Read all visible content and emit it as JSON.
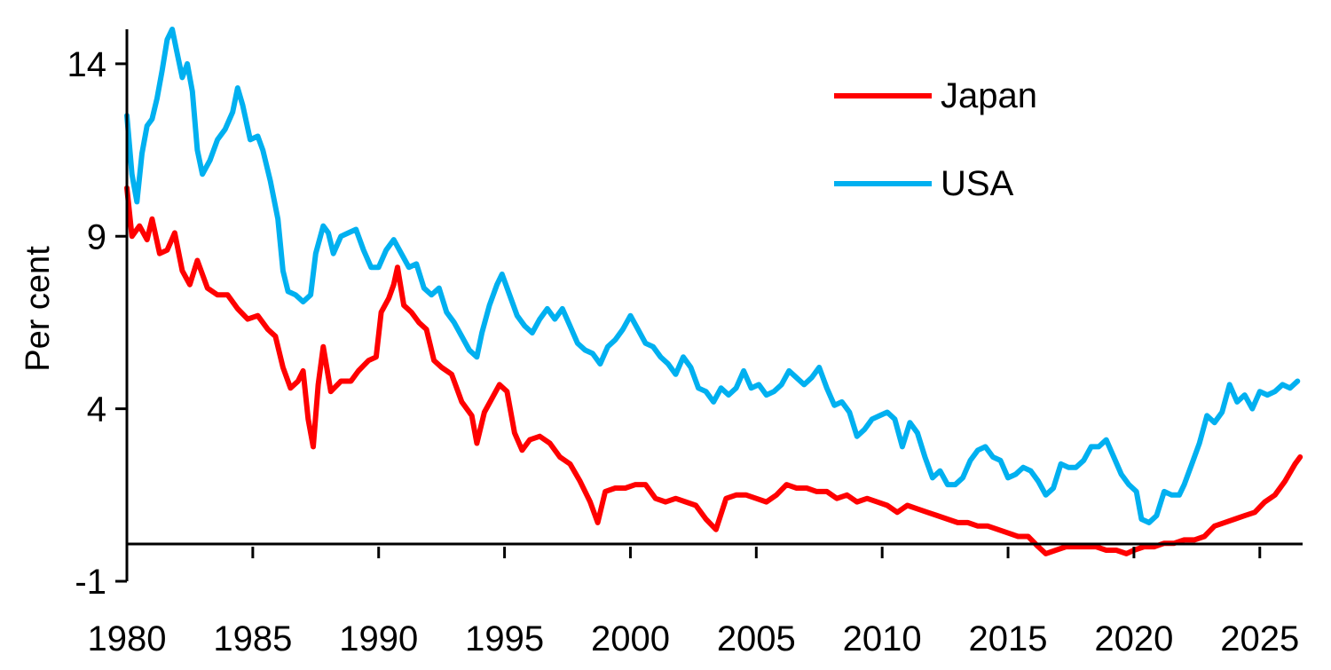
{
  "chart_data": {
    "type": "line",
    "title": "",
    "xlabel": "",
    "ylabel": "Per cent",
    "xlim": [
      1980,
      2026.7
    ],
    "ylim": [
      -1,
      15
    ],
    "x_ticks": [
      "1980",
      "1985",
      "1990",
      "1995",
      "2000",
      "2005",
      "2010",
      "2015",
      "2020",
      "2025"
    ],
    "y_ticks": [
      "-1",
      "4",
      "9",
      "14"
    ],
    "grid": false,
    "legend_position": "top-right",
    "series": [
      {
        "name": "Japan",
        "color": "#ff0000",
        "points": [
          [
            1980.0,
            10.4
          ],
          [
            1980.2,
            9.0
          ],
          [
            1980.5,
            9.3
          ],
          [
            1980.8,
            8.9
          ],
          [
            1981.0,
            9.5
          ],
          [
            1981.3,
            8.5
          ],
          [
            1981.6,
            8.6
          ],
          [
            1981.9,
            9.1
          ],
          [
            1982.2,
            8.0
          ],
          [
            1982.5,
            7.6
          ],
          [
            1982.8,
            8.3
          ],
          [
            1983.2,
            7.5
          ],
          [
            1983.6,
            7.3
          ],
          [
            1984.0,
            7.3
          ],
          [
            1984.4,
            6.9
          ],
          [
            1984.8,
            6.6
          ],
          [
            1985.2,
            6.7
          ],
          [
            1985.6,
            6.3
          ],
          [
            1985.9,
            6.1
          ],
          [
            1986.2,
            5.2
          ],
          [
            1986.5,
            4.6
          ],
          [
            1986.8,
            4.8
          ],
          [
            1987.0,
            5.1
          ],
          [
            1987.2,
            3.7
          ],
          [
            1987.4,
            2.9
          ],
          [
            1987.6,
            4.7
          ],
          [
            1987.8,
            5.8
          ],
          [
            1988.1,
            4.5
          ],
          [
            1988.5,
            4.8
          ],
          [
            1988.9,
            4.8
          ],
          [
            1989.2,
            5.1
          ],
          [
            1989.6,
            5.4
          ],
          [
            1989.9,
            5.5
          ],
          [
            1990.1,
            6.8
          ],
          [
            1990.4,
            7.2
          ],
          [
            1990.6,
            7.6
          ],
          [
            1990.75,
            8.1
          ],
          [
            1991.0,
            7.0
          ],
          [
            1991.3,
            6.8
          ],
          [
            1991.6,
            6.5
          ],
          [
            1991.9,
            6.3
          ],
          [
            1992.2,
            5.4
          ],
          [
            1992.5,
            5.2
          ],
          [
            1992.9,
            5.0
          ],
          [
            1993.3,
            4.2
          ],
          [
            1993.7,
            3.8
          ],
          [
            1993.9,
            3.0
          ],
          [
            1994.2,
            3.9
          ],
          [
            1994.5,
            4.3
          ],
          [
            1994.8,
            4.7
          ],
          [
            1995.1,
            4.5
          ],
          [
            1995.4,
            3.3
          ],
          [
            1995.7,
            2.8
          ],
          [
            1996.0,
            3.1
          ],
          [
            1996.4,
            3.2
          ],
          [
            1996.8,
            3.0
          ],
          [
            1997.2,
            2.6
          ],
          [
            1997.6,
            2.4
          ],
          [
            1998.0,
            1.9
          ],
          [
            1998.4,
            1.3
          ],
          [
            1998.7,
            0.7
          ],
          [
            1999.0,
            1.6
          ],
          [
            1999.4,
            1.7
          ],
          [
            1999.8,
            1.7
          ],
          [
            2000.2,
            1.8
          ],
          [
            2000.6,
            1.8
          ],
          [
            2001.0,
            1.4
          ],
          [
            2001.4,
            1.3
          ],
          [
            2001.8,
            1.4
          ],
          [
            2002.2,
            1.3
          ],
          [
            2002.6,
            1.2
          ],
          [
            2003.0,
            0.8
          ],
          [
            2003.4,
            0.5
          ],
          [
            2003.8,
            1.4
          ],
          [
            2004.2,
            1.5
          ],
          [
            2004.6,
            1.5
          ],
          [
            2005.0,
            1.4
          ],
          [
            2005.4,
            1.3
          ],
          [
            2005.8,
            1.5
          ],
          [
            2006.2,
            1.8
          ],
          [
            2006.6,
            1.7
          ],
          [
            2007.0,
            1.7
          ],
          [
            2007.4,
            1.6
          ],
          [
            2007.8,
            1.6
          ],
          [
            2008.2,
            1.4
          ],
          [
            2008.6,
            1.5
          ],
          [
            2009.0,
            1.3
          ],
          [
            2009.4,
            1.4
          ],
          [
            2009.8,
            1.3
          ],
          [
            2010.2,
            1.2
          ],
          [
            2010.6,
            1.0
          ],
          [
            2011.0,
            1.2
          ],
          [
            2011.4,
            1.1
          ],
          [
            2011.8,
            1.0
          ],
          [
            2012.2,
            0.9
          ],
          [
            2012.6,
            0.8
          ],
          [
            2013.0,
            0.7
          ],
          [
            2013.4,
            0.7
          ],
          [
            2013.8,
            0.6
          ],
          [
            2014.2,
            0.6
          ],
          [
            2014.6,
            0.5
          ],
          [
            2015.0,
            0.4
          ],
          [
            2015.4,
            0.3
          ],
          [
            2015.8,
            0.3
          ],
          [
            2016.2,
            0.0
          ],
          [
            2016.5,
            -0.2
          ],
          [
            2016.9,
            -0.1
          ],
          [
            2017.3,
            0.0
          ],
          [
            2017.7,
            0.0
          ],
          [
            2018.1,
            0.0
          ],
          [
            2018.5,
            0.0
          ],
          [
            2018.9,
            -0.1
          ],
          [
            2019.3,
            -0.1
          ],
          [
            2019.7,
            -0.2
          ],
          [
            2020.0,
            -0.1
          ],
          [
            2020.4,
            0.0
          ],
          [
            2020.8,
            0.0
          ],
          [
            2021.2,
            0.1
          ],
          [
            2021.6,
            0.1
          ],
          [
            2022.0,
            0.2
          ],
          [
            2022.4,
            0.2
          ],
          [
            2022.8,
            0.3
          ],
          [
            2023.2,
            0.6
          ],
          [
            2023.6,
            0.7
          ],
          [
            2024.0,
            0.8
          ],
          [
            2024.4,
            0.9
          ],
          [
            2024.8,
            1.0
          ],
          [
            2025.2,
            1.3
          ],
          [
            2025.6,
            1.5
          ],
          [
            2026.0,
            1.9
          ],
          [
            2026.4,
            2.4
          ],
          [
            2026.6,
            2.6
          ]
        ]
      },
      {
        "name": "USA",
        "color": "#00b0f0",
        "points": [
          [
            1980.0,
            12.5
          ],
          [
            1980.2,
            10.8
          ],
          [
            1980.4,
            10.0
          ],
          [
            1980.6,
            11.4
          ],
          [
            1980.8,
            12.2
          ],
          [
            1981.0,
            12.4
          ],
          [
            1981.2,
            13.0
          ],
          [
            1981.4,
            13.8
          ],
          [
            1981.6,
            14.7
          ],
          [
            1981.8,
            15.0
          ],
          [
            1982.0,
            14.3
          ],
          [
            1982.2,
            13.6
          ],
          [
            1982.4,
            14.0
          ],
          [
            1982.6,
            13.2
          ],
          [
            1982.8,
            11.5
          ],
          [
            1983.0,
            10.8
          ],
          [
            1983.3,
            11.2
          ],
          [
            1983.6,
            11.8
          ],
          [
            1983.9,
            12.1
          ],
          [
            1984.2,
            12.6
          ],
          [
            1984.4,
            13.3
          ],
          [
            1984.6,
            12.8
          ],
          [
            1984.9,
            11.8
          ],
          [
            1985.2,
            11.9
          ],
          [
            1985.4,
            11.5
          ],
          [
            1985.7,
            10.6
          ],
          [
            1986.0,
            9.5
          ],
          [
            1986.2,
            8.0
          ],
          [
            1986.4,
            7.4
          ],
          [
            1986.7,
            7.3
          ],
          [
            1987.0,
            7.1
          ],
          [
            1987.3,
            7.3
          ],
          [
            1987.5,
            8.5
          ],
          [
            1987.8,
            9.3
          ],
          [
            1988.0,
            9.1
          ],
          [
            1988.2,
            8.5
          ],
          [
            1988.5,
            9.0
          ],
          [
            1988.8,
            9.1
          ],
          [
            1989.1,
            9.2
          ],
          [
            1989.4,
            8.6
          ],
          [
            1989.7,
            8.1
          ],
          [
            1990.0,
            8.1
          ],
          [
            1990.3,
            8.6
          ],
          [
            1990.6,
            8.9
          ],
          [
            1990.9,
            8.5
          ],
          [
            1991.2,
            8.1
          ],
          [
            1991.5,
            8.2
          ],
          [
            1991.8,
            7.5
          ],
          [
            1992.1,
            7.3
          ],
          [
            1992.4,
            7.5
          ],
          [
            1992.7,
            6.8
          ],
          [
            1993.0,
            6.5
          ],
          [
            1993.3,
            6.1
          ],
          [
            1993.6,
            5.7
          ],
          [
            1993.9,
            5.5
          ],
          [
            1994.1,
            6.2
          ],
          [
            1994.4,
            7.0
          ],
          [
            1994.7,
            7.6
          ],
          [
            1994.9,
            7.9
          ],
          [
            1995.2,
            7.3
          ],
          [
            1995.5,
            6.7
          ],
          [
            1995.8,
            6.4
          ],
          [
            1996.1,
            6.2
          ],
          [
            1996.4,
            6.6
          ],
          [
            1996.7,
            6.9
          ],
          [
            1997.0,
            6.6
          ],
          [
            1997.3,
            6.9
          ],
          [
            1997.6,
            6.4
          ],
          [
            1997.9,
            5.9
          ],
          [
            1998.2,
            5.7
          ],
          [
            1998.5,
            5.6
          ],
          [
            1998.8,
            5.3
          ],
          [
            1999.1,
            5.8
          ],
          [
            1999.4,
            6.0
          ],
          [
            1999.7,
            6.3
          ],
          [
            2000.0,
            6.7
          ],
          [
            2000.3,
            6.3
          ],
          [
            2000.6,
            5.9
          ],
          [
            2000.9,
            5.8
          ],
          [
            2001.2,
            5.5
          ],
          [
            2001.5,
            5.3
          ],
          [
            2001.8,
            5.0
          ],
          [
            2002.1,
            5.5
          ],
          [
            2002.4,
            5.2
          ],
          [
            2002.7,
            4.6
          ],
          [
            2003.0,
            4.5
          ],
          [
            2003.3,
            4.2
          ],
          [
            2003.6,
            4.6
          ],
          [
            2003.9,
            4.4
          ],
          [
            2004.2,
            4.6
          ],
          [
            2004.5,
            5.1
          ],
          [
            2004.8,
            4.6
          ],
          [
            2005.1,
            4.7
          ],
          [
            2005.4,
            4.4
          ],
          [
            2005.7,
            4.5
          ],
          [
            2006.0,
            4.7
          ],
          [
            2006.3,
            5.1
          ],
          [
            2006.6,
            4.9
          ],
          [
            2006.9,
            4.7
          ],
          [
            2007.2,
            4.9
          ],
          [
            2007.5,
            5.2
          ],
          [
            2007.8,
            4.6
          ],
          [
            2008.1,
            4.1
          ],
          [
            2008.4,
            4.2
          ],
          [
            2008.7,
            3.9
          ],
          [
            2009.0,
            3.2
          ],
          [
            2009.3,
            3.4
          ],
          [
            2009.6,
            3.7
          ],
          [
            2009.9,
            3.8
          ],
          [
            2010.2,
            3.9
          ],
          [
            2010.5,
            3.7
          ],
          [
            2010.8,
            2.9
          ],
          [
            2011.1,
            3.6
          ],
          [
            2011.4,
            3.3
          ],
          [
            2011.7,
            2.6
          ],
          [
            2012.0,
            2.0
          ],
          [
            2012.3,
            2.2
          ],
          [
            2012.6,
            1.8
          ],
          [
            2012.9,
            1.8
          ],
          [
            2013.2,
            2.0
          ],
          [
            2013.5,
            2.5
          ],
          [
            2013.8,
            2.8
          ],
          [
            2014.1,
            2.9
          ],
          [
            2014.4,
            2.6
          ],
          [
            2014.7,
            2.5
          ],
          [
            2015.0,
            2.0
          ],
          [
            2015.3,
            2.1
          ],
          [
            2015.6,
            2.3
          ],
          [
            2015.9,
            2.2
          ],
          [
            2016.2,
            1.9
          ],
          [
            2016.5,
            1.5
          ],
          [
            2016.8,
            1.7
          ],
          [
            2017.1,
            2.4
          ],
          [
            2017.4,
            2.3
          ],
          [
            2017.7,
            2.3
          ],
          [
            2018.0,
            2.5
          ],
          [
            2018.3,
            2.9
          ],
          [
            2018.6,
            2.9
          ],
          [
            2018.9,
            3.1
          ],
          [
            2019.2,
            2.6
          ],
          [
            2019.5,
            2.1
          ],
          [
            2019.8,
            1.8
          ],
          [
            2020.1,
            1.6
          ],
          [
            2020.3,
            0.8
          ],
          [
            2020.6,
            0.7
          ],
          [
            2020.9,
            0.9
          ],
          [
            2021.2,
            1.6
          ],
          [
            2021.5,
            1.5
          ],
          [
            2021.8,
            1.5
          ],
          [
            2022.0,
            1.8
          ],
          [
            2022.3,
            2.4
          ],
          [
            2022.6,
            3.0
          ],
          [
            2022.9,
            3.8
          ],
          [
            2023.2,
            3.6
          ],
          [
            2023.5,
            3.9
          ],
          [
            2023.8,
            4.7
          ],
          [
            2024.1,
            4.2
          ],
          [
            2024.4,
            4.4
          ],
          [
            2024.7,
            4.0
          ],
          [
            2025.0,
            4.5
          ],
          [
            2025.3,
            4.4
          ],
          [
            2025.6,
            4.5
          ],
          [
            2025.9,
            4.7
          ],
          [
            2026.2,
            4.6
          ],
          [
            2026.5,
            4.8
          ]
        ]
      }
    ]
  }
}
